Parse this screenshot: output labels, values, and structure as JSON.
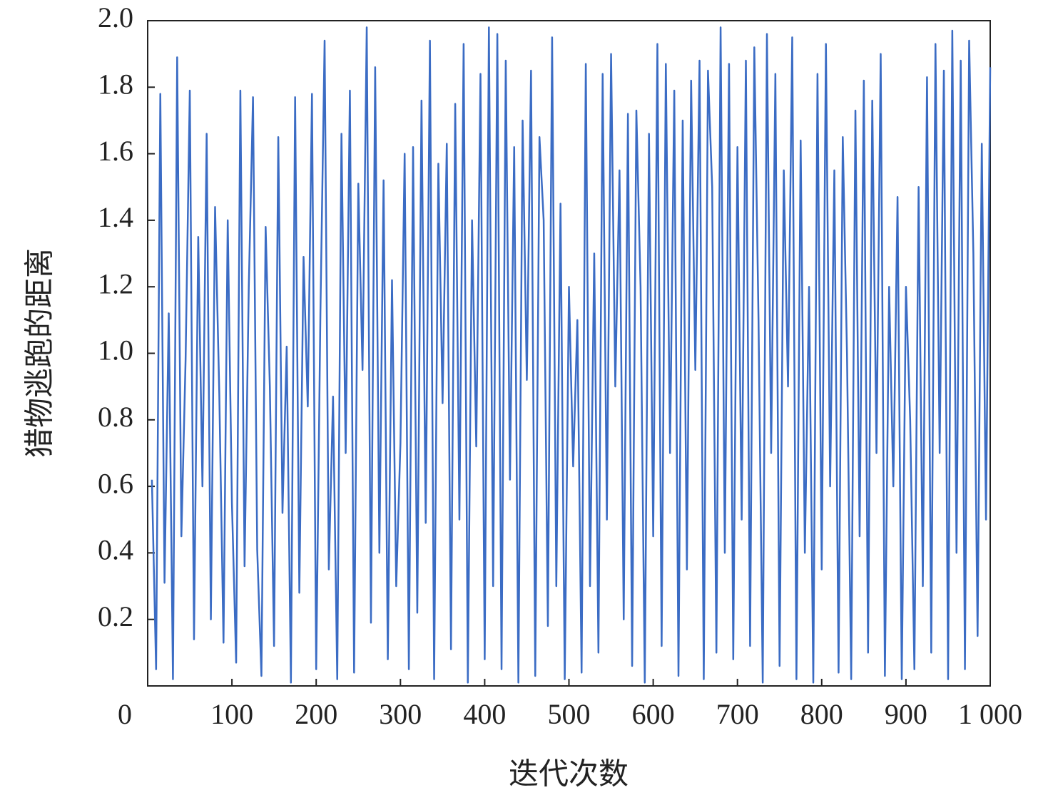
{
  "chart_data": {
    "type": "line",
    "x_label": "迭代次数",
    "y_label": "猎物逃跑的距离",
    "color": "#3b6cc4",
    "xlim": [
      0,
      1000
    ],
    "ylim": [
      0,
      2
    ],
    "xticks": [
      0,
      100,
      200,
      300,
      400,
      500,
      600,
      700,
      800,
      900,
      {
        "value": 1000,
        "label": "1 000"
      }
    ],
    "yticks": [
      0.2,
      0.4,
      0.6,
      0.8,
      {
        "value": 1,
        "label": "1.0"
      },
      1.2,
      1.4,
      1.6,
      1.8,
      {
        "value": 2,
        "label": "2.0"
      }
    ],
    "grid": false,
    "x": [
      5,
      10,
      15,
      20,
      25,
      30,
      35,
      40,
      45,
      50,
      55,
      60,
      65,
      70,
      75,
      80,
      85,
      90,
      95,
      100,
      105,
      110,
      115,
      120,
      125,
      130,
      135,
      140,
      145,
      150,
      155,
      160,
      165,
      170,
      175,
      180,
      185,
      190,
      195,
      200,
      205,
      210,
      215,
      220,
      225,
      230,
      235,
      240,
      245,
      250,
      255,
      260,
      265,
      270,
      275,
      280,
      285,
      290,
      295,
      300,
      305,
      310,
      315,
      320,
      325,
      330,
      335,
      340,
      345,
      350,
      355,
      360,
      365,
      370,
      375,
      380,
      385,
      390,
      395,
      400,
      405,
      410,
      415,
      420,
      425,
      430,
      435,
      440,
      445,
      450,
      455,
      460,
      465,
      470,
      475,
      480,
      485,
      490,
      495,
      500,
      505,
      510,
      515,
      520,
      525,
      530,
      535,
      540,
      545,
      550,
      555,
      560,
      565,
      570,
      575,
      580,
      585,
      590,
      595,
      600,
      605,
      610,
      615,
      620,
      625,
      630,
      635,
      640,
      645,
      650,
      655,
      660,
      665,
      670,
      675,
      680,
      685,
      690,
      695,
      700,
      705,
      710,
      715,
      720,
      725,
      730,
      735,
      740,
      745,
      750,
      755,
      760,
      765,
      770,
      775,
      780,
      785,
      790,
      795,
      800,
      805,
      810,
      815,
      820,
      825,
      830,
      835,
      840,
      845,
      850,
      855,
      860,
      865,
      870,
      875,
      880,
      885,
      890,
      895,
      900,
      905,
      910,
      915,
      920,
      925,
      930,
      935,
      940,
      945,
      950,
      955,
      960,
      965,
      970,
      975,
      980,
      985,
      990,
      995,
      1000
    ],
    "values": [
      0.62,
      0.05,
      1.78,
      0.31,
      1.12,
      0.02,
      1.89,
      0.45,
      0.98,
      1.79,
      0.14,
      1.35,
      0.6,
      1.66,
      0.2,
      1.44,
      0.88,
      0.13,
      1.4,
      0.55,
      0.07,
      1.79,
      0.36,
      1.2,
      1.77,
      0.41,
      0.03,
      1.38,
      0.9,
      0.12,
      1.65,
      0.52,
      1.02,
      0.01,
      1.77,
      0.28,
      1.29,
      0.84,
      1.78,
      0.05,
      1.12,
      1.94,
      0.35,
      0.87,
      0.02,
      1.66,
      0.7,
      1.79,
      0.04,
      1.51,
      0.95,
      1.98,
      0.19,
      1.86,
      0.4,
      1.52,
      0.08,
      1.22,
      0.3,
      0.73,
      1.6,
      0.05,
      1.62,
      0.22,
      1.76,
      0.49,
      1.94,
      0.02,
      1.57,
      0.85,
      1.63,
      0.11,
      1.75,
      0.5,
      1.93,
      0.01,
      1.4,
      0.72,
      1.84,
      0.08,
      1.98,
      0.3,
      1.96,
      0.05,
      1.88,
      0.62,
      1.62,
      0.01,
      1.7,
      0.92,
      1.85,
      0.03,
      1.65,
      1.4,
      0.18,
      1.95,
      0.3,
      1.45,
      0.02,
      1.2,
      0.66,
      1.1,
      0.04,
      1.87,
      0.3,
      1.3,
      0.1,
      1.84,
      0.5,
      1.9,
      0.9,
      1.55,
      0.2,
      1.72,
      0.06,
      1.73,
      1.2,
      0.01,
      1.66,
      0.45,
      1.93,
      0.12,
      1.87,
      0.7,
      1.79,
      0.03,
      1.7,
      0.35,
      1.82,
      0.95,
      1.88,
      0.02,
      1.85,
      1.5,
      0.1,
      1.98,
      0.4,
      1.87,
      0.08,
      1.62,
      0.5,
      1.88,
      0.12,
      1.92,
      1.1,
      0.01,
      1.96,
      0.7,
      1.84,
      0.06,
      1.55,
      0.9,
      1.95,
      0.02,
      1.64,
      0.4,
      1.2,
      0.01,
      1.84,
      0.35,
      1.93,
      0.6,
      1.55,
      0.04,
      1.65,
      1.0,
      0.02,
      1.73,
      0.45,
      1.82,
      0.1,
      1.76,
      0.7,
      1.9,
      0.03,
      1.2,
      0.6,
      1.47,
      0.02,
      1.2,
      0.8,
      0.05,
      1.5,
      0.3,
      1.83,
      0.1,
      1.93,
      0.7,
      1.85,
      0.02,
      1.97,
      0.4,
      1.88,
      0.05,
      1.94,
      1.3,
      0.15,
      1.63,
      0.5,
      1.86
    ]
  }
}
